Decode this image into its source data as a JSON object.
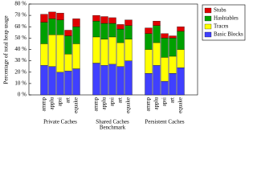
{
  "chart_data": {
    "type": "bar",
    "stacked": true,
    "ylabel": "Percentage of total heap usage",
    "xlabel": "Benchmark",
    "groups": [
      "Private Caches",
      "Shared Caches",
      "Persistent Caches"
    ],
    "categories": [
      "ammp",
      "applu",
      "apsi",
      "art",
      "equake"
    ],
    "ylim": [
      0,
      80
    ],
    "yticks": [
      {
        "value": 0,
        "label": "0 %"
      },
      {
        "value": 10,
        "label": "10 %"
      },
      {
        "value": 20,
        "label": "20 %"
      },
      {
        "value": 30,
        "label": "30 %"
      },
      {
        "value": 40,
        "label": "40 %"
      },
      {
        "value": 50,
        "label": "50 %"
      },
      {
        "value": 60,
        "label": "60 %"
      },
      {
        "value": 70,
        "label": "70 %"
      },
      {
        "value": 80,
        "label": "80 %"
      }
    ],
    "series": [
      {
        "name": "Basic Blocks",
        "color": "#4040ff",
        "values": [
          [
            26,
            25,
            20,
            21,
            23
          ],
          [
            28,
            26,
            27,
            25,
            30
          ],
          [
            19,
            26,
            12,
            19,
            24
          ]
        ]
      },
      {
        "name": "Traces",
        "color": "#ffff00",
        "values": [
          [
            19,
            28,
            33,
            15,
            22
          ],
          [
            23,
            23,
            24,
            21,
            19
          ],
          [
            21,
            20,
            21,
            15,
            16
          ]
        ]
      },
      {
        "name": "Hashtables",
        "color": "#00a000",
        "values": [
          [
            19,
            14,
            13,
            16,
            15
          ],
          [
            14,
            14,
            12,
            12,
            12
          ],
          [
            14,
            15,
            17,
            16,
            16
          ]
        ]
      },
      {
        "name": "Stubs",
        "color": "#e00000",
        "values": [
          [
            7,
            6,
            6,
            5,
            7
          ],
          [
            5,
            6,
            5,
            4,
            5
          ],
          [
            5,
            4,
            4,
            2,
            4
          ]
        ]
      }
    ]
  }
}
